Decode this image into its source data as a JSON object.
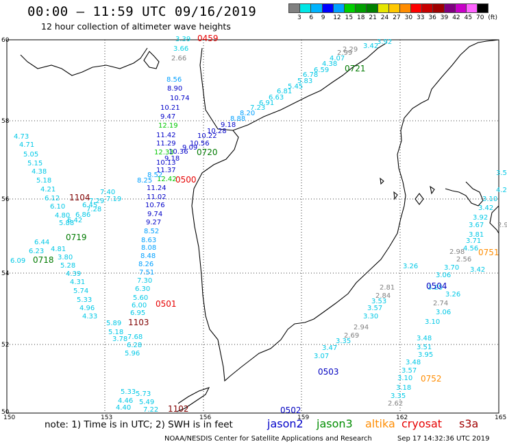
{
  "header": {
    "title": "00:00 – 11:59 UTC 09/16/2019",
    "subtitle": "12 hour collection of altimeter wave heights"
  },
  "color_scale": {
    "colors": [
      "#808080",
      "#00e6e6",
      "#00b4ff",
      "#0000ff",
      "#00a0ff",
      "#00d000",
      "#00a000",
      "#008000",
      "#e6e600",
      "#ffc800",
      "#ff8c00",
      "#ff0000",
      "#c80000",
      "#a00000",
      "#800080",
      "#c800c8",
      "#ff64ff",
      "#000000"
    ],
    "labels": [
      "3",
      "6",
      "9",
      "12",
      "15",
      "18",
      "21",
      "24",
      "27",
      "30",
      "33",
      "36",
      "39",
      "42",
      "45",
      "70",
      "(ft)"
    ]
  },
  "map": {
    "lat_labels": [
      "60",
      "58",
      "56",
      "54",
      "52",
      "50"
    ],
    "lon_labels": [
      "150",
      "153",
      "156",
      "159",
      "162",
      "165"
    ],
    "passes": [
      {
        "id": "0459",
        "color": "#e60000"
      },
      {
        "id": "0721",
        "color": "#007a00"
      },
      {
        "id": "0720",
        "color": "#007a00"
      },
      {
        "id": "0500",
        "color": "#e60000"
      },
      {
        "id": "1104",
        "color": "#800000"
      },
      {
        "id": "0719",
        "color": "#007a00"
      },
      {
        "id": "0718",
        "color": "#007a00"
      },
      {
        "id": "0501",
        "color": "#e60000"
      },
      {
        "id": "1103",
        "color": "#800000"
      },
      {
        "id": "1102",
        "color": "#800000"
      },
      {
        "id": "0502",
        "color": "#0000c0"
      },
      {
        "id": "0503",
        "color": "#0000c0"
      },
      {
        "id": "0504",
        "color": "#0000c0"
      },
      {
        "id": "0751",
        "color": "#ff8c00"
      },
      {
        "id": "0752",
        "color": "#ff8c00"
      }
    ],
    "points": [
      {
        "v": "3.39",
        "c": "#00d2e6"
      },
      {
        "v": "3.66",
        "c": "#00d2e6"
      },
      {
        "v": "2.66",
        "c": "#808080"
      },
      {
        "v": "8.56",
        "c": "#00a0ff"
      },
      {
        "v": "8.90",
        "c": "#0000c8"
      },
      {
        "v": "10.74",
        "c": "#0000c8"
      },
      {
        "v": "10.21",
        "c": "#0000c8"
      },
      {
        "v": "9.47",
        "c": "#0000c8"
      },
      {
        "v": "12.19",
        "c": "#00c800"
      },
      {
        "v": "11.42",
        "c": "#0000c8"
      },
      {
        "v": "11.29",
        "c": "#0000c8"
      },
      {
        "v": "10.36",
        "c": "#0000c8"
      },
      {
        "v": "12.33",
        "c": "#00c800"
      },
      {
        "v": "9.18",
        "c": "#0000c8"
      },
      {
        "v": "10.13",
        "c": "#0000c8"
      },
      {
        "v": "11.37",
        "c": "#0000c8"
      },
      {
        "v": "12.42",
        "c": "#00c800"
      },
      {
        "v": "11.24",
        "c": "#0000c8"
      },
      {
        "v": "11.02",
        "c": "#0000c8"
      },
      {
        "v": "10.76",
        "c": "#0000c8"
      },
      {
        "v": "9.74",
        "c": "#0000c8"
      },
      {
        "v": "9.27",
        "c": "#0000c8"
      },
      {
        "v": "8.52",
        "c": "#00a0ff"
      },
      {
        "v": "8.63",
        "c": "#00a0ff"
      },
      {
        "v": "8.08",
        "c": "#00a0ff"
      },
      {
        "v": "8.48",
        "c": "#00a0ff"
      },
      {
        "v": "8.26",
        "c": "#00a0ff"
      },
      {
        "v": "7.51",
        "c": "#00a0ff"
      },
      {
        "v": "7.30",
        "c": "#00c8e6"
      },
      {
        "v": "6.30",
        "c": "#00c8e6"
      },
      {
        "v": "5.60",
        "c": "#00c8e6"
      },
      {
        "v": "6.00",
        "c": "#00c8e6"
      },
      {
        "v": "6.95",
        "c": "#00c8e6"
      },
      {
        "v": "7.68",
        "c": "#00c8e6"
      },
      {
        "v": "6.28",
        "c": "#00c8e6"
      },
      {
        "v": "5.96",
        "c": "#00c8e6"
      },
      {
        "v": "5.73",
        "c": "#00c8e6"
      },
      {
        "v": "5.49",
        "c": "#00c8e6"
      },
      {
        "v": "7.22",
        "c": "#00c8e6"
      },
      {
        "v": "4.73",
        "c": "#00c8e6"
      },
      {
        "v": "4.71",
        "c": "#00c8e6"
      },
      {
        "v": "5.05",
        "c": "#00c8e6"
      },
      {
        "v": "5.15",
        "c": "#00c8e6"
      },
      {
        "v": "4.38",
        "c": "#00c8e6"
      },
      {
        "v": "5.18",
        "c": "#00c8e6"
      },
      {
        "v": "4.21",
        "c": "#00c8e6"
      },
      {
        "v": "6.12",
        "c": "#00c8e6"
      },
      {
        "v": "6.10",
        "c": "#00c8e6"
      },
      {
        "v": "4.80",
        "c": "#00c8e6"
      },
      {
        "v": "5.88",
        "c": "#00c8e6"
      },
      {
        "v": "6.44",
        "c": "#00c8e6"
      },
      {
        "v": "6.23",
        "c": "#00c8e6"
      },
      {
        "v": "6.09",
        "c": "#00c8e6"
      },
      {
        "v": "4.81",
        "c": "#00c8e6"
      },
      {
        "v": "3.80",
        "c": "#00c8e6"
      },
      {
        "v": "5.28",
        "c": "#00c8e6"
      },
      {
        "v": "4.39",
        "c": "#00c8e6"
      },
      {
        "v": "4.31",
        "c": "#00c8e6"
      },
      {
        "v": "5.74",
        "c": "#00c8e6"
      },
      {
        "v": "5.33",
        "c": "#00c8e6"
      },
      {
        "v": "4.96",
        "c": "#00c8e6"
      },
      {
        "v": "4.33",
        "c": "#00c8e6"
      },
      {
        "v": "5.89",
        "c": "#00c8e6"
      },
      {
        "v": "5.18",
        "c": "#00c8e6"
      },
      {
        "v": "3.78",
        "c": "#00c8e6"
      },
      {
        "v": "5.33",
        "c": "#00c8e6"
      },
      {
        "v": "4.46",
        "c": "#00c8e6"
      },
      {
        "v": "4.40",
        "c": "#00c8e6"
      },
      {
        "v": "7.40",
        "c": "#00c8e6"
      },
      {
        "v": "7.19",
        "c": "#00c8e6"
      },
      {
        "v": "7.29",
        "c": "#00c8e6"
      },
      {
        "v": "6.45",
        "c": "#00c8e6"
      },
      {
        "v": "7.28",
        "c": "#00c8e6"
      },
      {
        "v": "6.86",
        "c": "#00c8e6"
      },
      {
        "v": "6.42",
        "c": "#00c8e6"
      },
      {
        "v": "8.25",
        "c": "#00a0ff"
      },
      {
        "v": "8.52",
        "c": "#00a0ff"
      },
      {
        "v": "9.09",
        "c": "#0000c8"
      },
      {
        "v": "10.56",
        "c": "#0000c8"
      },
      {
        "v": "10.22",
        "c": "#0000c8"
      },
      {
        "v": "10.28",
        "c": "#0000c8"
      },
      {
        "v": "9.18",
        "c": "#0000c8"
      },
      {
        "v": "8.88",
        "c": "#00a0ff"
      },
      {
        "v": "8.20",
        "c": "#00a0ff"
      },
      {
        "v": "7.23",
        "c": "#00c8e6"
      },
      {
        "v": "6.91",
        "c": "#00c8e6"
      },
      {
        "v": "6.63",
        "c": "#00c8e6"
      },
      {
        "v": "6.81",
        "c": "#00c8e6"
      },
      {
        "v": "5.45",
        "c": "#00c8e6"
      },
      {
        "v": "5.83",
        "c": "#00c8e6"
      },
      {
        "v": "6.78",
        "c": "#00c8e6"
      },
      {
        "v": "6.59",
        "c": "#00c8e6"
      },
      {
        "v": "4.38",
        "c": "#00c8e6"
      },
      {
        "v": "4.07",
        "c": "#00c8e6"
      },
      {
        "v": "2.99",
        "c": "#808080"
      },
      {
        "v": "2.29",
        "c": "#808080"
      },
      {
        "v": "3.42",
        "c": "#00c8e6"
      },
      {
        "v": "3.92",
        "c": "#00c8e6"
      },
      {
        "v": "3.53",
        "c": "#00c8e6"
      },
      {
        "v": "4.26",
        "c": "#00c8e6"
      },
      {
        "v": "3.10",
        "c": "#00c8e6"
      },
      {
        "v": "3.42",
        "c": "#00c8e6"
      },
      {
        "v": "3.92",
        "c": "#00c8e6"
      },
      {
        "v": "3.67",
        "c": "#00c8e6"
      },
      {
        "v": "2.98",
        "c": "#808080"
      },
      {
        "v": "3.81",
        "c": "#00c8e6"
      },
      {
        "v": "3.71",
        "c": "#00c8e6"
      },
      {
        "v": "4.56",
        "c": "#00c8e6"
      },
      {
        "v": "2.98",
        "c": "#808080"
      },
      {
        "v": "2.56",
        "c": "#808080"
      },
      {
        "v": "3.70",
        "c": "#00c8e6"
      },
      {
        "v": "3.06",
        "c": "#00c8e6"
      },
      {
        "v": "3.42",
        "c": "#00c8e6"
      },
      {
        "v": "3.26",
        "c": "#00c8e6"
      },
      {
        "v": "3.25",
        "c": "#00c8e6"
      },
      {
        "v": "3.26",
        "c": "#00c8e6"
      },
      {
        "v": "2.74",
        "c": "#808080"
      },
      {
        "v": "3.06",
        "c": "#00c8e6"
      },
      {
        "v": "3.10",
        "c": "#00c8e6"
      },
      {
        "v": "3.48",
        "c": "#00c8e6"
      },
      {
        "v": "3.51",
        "c": "#00c8e6"
      },
      {
        "v": "3.95",
        "c": "#00c8e6"
      },
      {
        "v": "3.48",
        "c": "#00c8e6"
      },
      {
        "v": "3.57",
        "c": "#00c8e6"
      },
      {
        "v": "3.10",
        "c": "#00c8e6"
      },
      {
        "v": "3.18",
        "c": "#00c8e6"
      },
      {
        "v": "3.35",
        "c": "#00c8e6"
      },
      {
        "v": "2.62",
        "c": "#808080"
      },
      {
        "v": "2.81",
        "c": "#808080"
      },
      {
        "v": "2.84",
        "c": "#808080"
      },
      {
        "v": "3.53",
        "c": "#00c8e6"
      },
      {
        "v": "3.57",
        "c": "#00c8e6"
      },
      {
        "v": "3.30",
        "c": "#00c8e6"
      },
      {
        "v": "2.94",
        "c": "#808080"
      },
      {
        "v": "2.69",
        "c": "#808080"
      },
      {
        "v": "3.35",
        "c": "#00c8e6"
      },
      {
        "v": "3.47",
        "c": "#00c8e6"
      },
      {
        "v": "3.07",
        "c": "#00c8e6"
      }
    ]
  },
  "footer": {
    "note": "note:  1) Time is in UTC;  2) SWH is in feet",
    "missions": [
      {
        "name": "jason2",
        "color": "#0000c8"
      },
      {
        "name": "jason3",
        "color": "#008c00"
      },
      {
        "name": "altika",
        "color": "#ff8c00"
      },
      {
        "name": "cryosat",
        "color": "#e60000"
      },
      {
        "name": "s3a",
        "color": "#a00000"
      }
    ],
    "credit": "NOAA/NESDIS Center for Satellite Applications and Research",
    "stamp": "Sep 17 14:32:36 UTC 2019"
  }
}
